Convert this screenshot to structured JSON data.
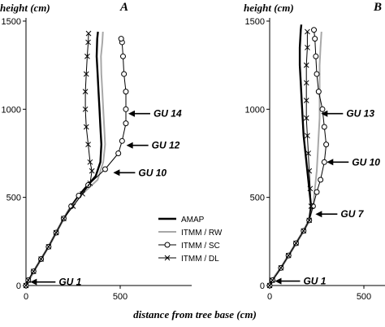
{
  "figure": {
    "xlabel": "distance from tree base (cm)"
  },
  "chart_data": [
    {
      "panel": "A",
      "type": "line",
      "ylabel": "height (cm)",
      "xlim": [
        0,
        600
      ],
      "ylim": [
        0,
        1500
      ],
      "xticks": [
        0,
        500
      ],
      "yticks": [
        0,
        500,
        1000,
        1500
      ],
      "series": [
        {
          "name": "AMAP",
          "color": "#000000",
          "marker": "none",
          "width": 2.4,
          "points": [
            [
              0,
              0
            ],
            [
              10,
              20
            ],
            [
              40,
              80
            ],
            [
              80,
              150
            ],
            [
              120,
              220
            ],
            [
              160,
              300
            ],
            [
              200,
              380
            ],
            [
              240,
              450
            ],
            [
              280,
              510
            ],
            [
              320,
              560
            ],
            [
              370,
              620
            ],
            [
              395,
              700
            ],
            [
              400,
              800
            ],
            [
              395,
              900
            ],
            [
              390,
              1000
            ],
            [
              385,
              1100
            ],
            [
              380,
              1200
            ],
            [
              375,
              1300
            ],
            [
              378,
              1400
            ],
            [
              382,
              1440
            ]
          ]
        },
        {
          "name": "ITMM / RW",
          "color": "#a8a8a8",
          "marker": "none",
          "width": 2.0,
          "points": [
            [
              0,
              0
            ],
            [
              10,
              20
            ],
            [
              40,
              80
            ],
            [
              80,
              150
            ],
            [
              120,
              220
            ],
            [
              160,
              300
            ],
            [
              200,
              380
            ],
            [
              240,
              450
            ],
            [
              285,
              505
            ],
            [
              330,
              550
            ],
            [
              380,
              600
            ],
            [
              410,
              700
            ],
            [
              420,
              800
            ],
            [
              415,
              900
            ],
            [
              410,
              1000
            ],
            [
              405,
              1100
            ],
            [
              400,
              1200
            ],
            [
              398,
              1300
            ],
            [
              405,
              1380
            ],
            [
              408,
              1440
            ]
          ]
        },
        {
          "name": "ITMM / SC",
          "color": "#000000",
          "marker": "circle",
          "width": 1.0,
          "points": [
            [
              0,
              0
            ],
            [
              12,
              30
            ],
            [
              40,
              80
            ],
            [
              80,
              150
            ],
            [
              120,
              220
            ],
            [
              160,
              300
            ],
            [
              200,
              380
            ],
            [
              240,
              450
            ],
            [
              280,
              510
            ],
            [
              330,
              570
            ],
            [
              420,
              660
            ],
            [
              490,
              750
            ],
            [
              510,
              820
            ],
            [
              530,
              920
            ],
            [
              530,
              1000
            ],
            [
              530,
              1100
            ],
            [
              520,
              1200
            ],
            [
              515,
              1300
            ],
            [
              510,
              1380
            ],
            [
              505,
              1400
            ]
          ]
        },
        {
          "name": "ITMM / DL",
          "color": "#000000",
          "marker": "x",
          "width": 1.0,
          "points": [
            [
              0,
              0
            ],
            [
              12,
              30
            ],
            [
              40,
              80
            ],
            [
              80,
              150
            ],
            [
              120,
              220
            ],
            [
              160,
              300
            ],
            [
              200,
              380
            ],
            [
              250,
              450
            ],
            [
              300,
              520
            ],
            [
              340,
              580
            ],
            [
              350,
              650
            ],
            [
              340,
              700
            ],
            [
              330,
              800
            ],
            [
              320,
              900
            ],
            [
              315,
              1000
            ],
            [
              315,
              1100
            ],
            [
              320,
              1200
            ],
            [
              325,
              1300
            ],
            [
              330,
              1380
            ],
            [
              332,
              1430
            ]
          ]
        }
      ],
      "annotations": [
        {
          "text": "GU 14",
          "x": 530,
          "y": 975
        },
        {
          "text": "GU 12",
          "x": 520,
          "y": 795
        },
        {
          "text": "GU 10",
          "x": 450,
          "y": 640
        },
        {
          "text": "GU 1",
          "x": 10,
          "y": 20
        }
      ]
    },
    {
      "panel": "B",
      "type": "line",
      "ylabel": "height (cm)",
      "xlim": [
        0,
        600
      ],
      "ylim": [
        0,
        1500
      ],
      "xticks": [
        0,
        500
      ],
      "yticks": [
        0,
        500,
        1000,
        1500
      ],
      "series": [
        {
          "name": "AMAP",
          "color": "#000000",
          "marker": "none",
          "width": 2.4,
          "points": [
            [
              0,
              0
            ],
            [
              20,
              40
            ],
            [
              60,
              100
            ],
            [
              100,
              170
            ],
            [
              140,
              240
            ],
            [
              180,
              310
            ],
            [
              210,
              370
            ],
            [
              220,
              450
            ],
            [
              210,
              550
            ],
            [
              200,
              650
            ],
            [
              190,
              750
            ],
            [
              180,
              850
            ],
            [
              175,
              950
            ],
            [
              170,
              1050
            ],
            [
              165,
              1150
            ],
            [
              160,
              1250
            ],
            [
              160,
              1350
            ],
            [
              165,
              1450
            ],
            [
              168,
              1480
            ]
          ]
        },
        {
          "name": "ITMM / RW",
          "color": "#a8a8a8",
          "marker": "none",
          "width": 2.0,
          "points": [
            [
              0,
              0
            ],
            [
              20,
              40
            ],
            [
              60,
              100
            ],
            [
              100,
              170
            ],
            [
              140,
              240
            ],
            [
              180,
              310
            ],
            [
              210,
              370
            ],
            [
              230,
              450
            ],
            [
              240,
              550
            ],
            [
              250,
              650
            ],
            [
              255,
              750
            ],
            [
              260,
              850
            ],
            [
              265,
              950
            ],
            [
              265,
              1050
            ],
            [
              265,
              1150
            ],
            [
              265,
              1250
            ],
            [
              270,
              1350
            ],
            [
              275,
              1440
            ]
          ]
        },
        {
          "name": "ITMM / SC",
          "color": "#000000",
          "marker": "circle",
          "width": 1.0,
          "points": [
            [
              0,
              0
            ],
            [
              15,
              30
            ],
            [
              60,
              100
            ],
            [
              100,
              170
            ],
            [
              140,
              240
            ],
            [
              180,
              310
            ],
            [
              210,
              370
            ],
            [
              230,
              450
            ],
            [
              250,
              530
            ],
            [
              270,
              600
            ],
            [
              290,
              700
            ],
            [
              300,
              800
            ],
            [
              290,
              900
            ],
            [
              280,
              1000
            ],
            [
              260,
              1100
            ],
            [
              250,
              1200
            ],
            [
              245,
              1300
            ],
            [
              240,
              1400
            ],
            [
              235,
              1450
            ]
          ]
        },
        {
          "name": "ITMM / DL",
          "color": "#000000",
          "marker": "x",
          "width": 1.0,
          "points": [
            [
              0,
              0
            ],
            [
              15,
              30
            ],
            [
              60,
              100
            ],
            [
              100,
              170
            ],
            [
              140,
              240
            ],
            [
              180,
              310
            ],
            [
              210,
              370
            ],
            [
              220,
              450
            ],
            [
              215,
              550
            ],
            [
              210,
              650
            ],
            [
              205,
              750
            ],
            [
              200,
              850
            ],
            [
              195,
              950
            ],
            [
              195,
              1050
            ],
            [
              195,
              1150
            ],
            [
              195,
              1250
            ],
            [
              200,
              1350
            ],
            [
              200,
              1440
            ]
          ]
        }
      ],
      "annotations": [
        {
          "text": "GU 13",
          "x": 260,
          "y": 975
        },
        {
          "text": "GU 10",
          "x": 290,
          "y": 700
        },
        {
          "text": "GU 7",
          "x": 230,
          "y": 405
        },
        {
          "text": "GU 1",
          "x": 15,
          "y": 25
        }
      ]
    }
  ]
}
